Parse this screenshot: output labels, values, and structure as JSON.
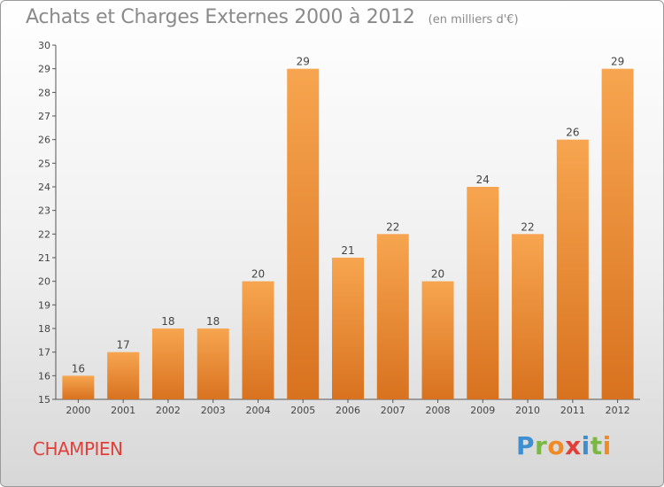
{
  "chart_data": {
    "type": "bar",
    "title": "Achats et Charges Externes 2000 à 2012",
    "unit_label": "(en milliers d'€)",
    "categories": [
      "2000",
      "2001",
      "2002",
      "2003",
      "2004",
      "2005",
      "2006",
      "2007",
      "2008",
      "2009",
      "2010",
      "2011",
      "2012"
    ],
    "values": [
      16,
      17,
      18,
      18,
      20,
      29,
      21,
      22,
      20,
      24,
      22,
      26,
      29
    ],
    "ylim": [
      15,
      30
    ],
    "yticks": [
      15,
      16,
      17,
      18,
      19,
      20,
      21,
      22,
      23,
      24,
      25,
      26,
      27,
      28,
      29,
      30
    ],
    "grid": false,
    "bar_color_top": "#f7a550",
    "bar_color_bottom": "#d8721f",
    "data_labels": true
  },
  "footer": {
    "commune": "CHAMPIEN",
    "brand_letters": [
      {
        "ch": "P",
        "color": "#3d8fd1"
      },
      {
        "ch": "r",
        "color": "#7ab843"
      },
      {
        "ch": "o",
        "color": "#f08a24"
      },
      {
        "ch": "x",
        "color": "#e0403a"
      },
      {
        "ch": "i",
        "color": "#3d8fd1"
      },
      {
        "ch": "t",
        "color": "#7ab843"
      },
      {
        "ch": "i",
        "color": "#f08a24"
      }
    ],
    "commune_color": "#e0403a"
  }
}
